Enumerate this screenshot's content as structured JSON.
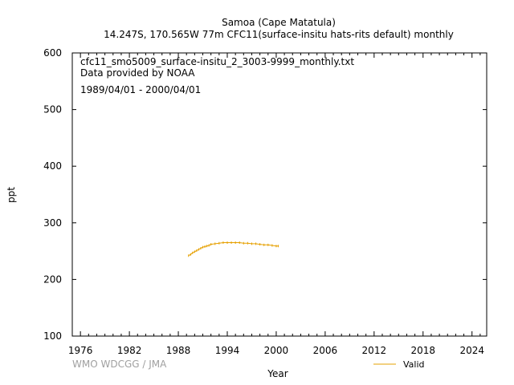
{
  "chart_data": {
    "type": "line",
    "title": "Samoa (Cape Matatula)",
    "subtitle": "14.247S, 170.565W 77m    CFC11(surface-insitu hats-rits default) monthly",
    "annotations": [
      "cfc11_smo5009_surface-insitu_2_3003-9999_monthly.txt",
      "Data provided by NOAA",
      "1989/04/01 - 2000/04/01"
    ],
    "xlabel": "Year",
    "ylabel": "ppt",
    "xlim": [
      1975,
      2025.8
    ],
    "ylim": [
      100,
      600
    ],
    "x_ticks": [
      1976,
      1982,
      1988,
      1994,
      2000,
      2006,
      2012,
      2018,
      2024
    ],
    "y_ticks": [
      100,
      200,
      300,
      400,
      500,
      600
    ],
    "legend": {
      "position": "bottom-right",
      "entries": [
        "Valid"
      ]
    },
    "credit": "WMO WDCGG / JMA",
    "colors": {
      "valid": "#e6a000",
      "credit": "#a0a0a0"
    },
    "series": [
      {
        "name": "Valid",
        "x": [
          1989.25,
          1989.5,
          1989.75,
          1990.0,
          1990.25,
          1990.5,
          1990.75,
          1991.0,
          1991.25,
          1991.5,
          1991.75,
          1992.0,
          1992.5,
          1993.0,
          1993.5,
          1994.0,
          1994.5,
          1995.0,
          1995.5,
          1996.0,
          1996.5,
          1997.0,
          1997.5,
          1998.0,
          1998.5,
          1999.0,
          1999.5,
          2000.0,
          2000.25
        ],
        "y": [
          242,
          244,
          247,
          249,
          251,
          253,
          255,
          257,
          258,
          259,
          260,
          262,
          263,
          264,
          265,
          265,
          265,
          265,
          265,
          264,
          264,
          263,
          263,
          262,
          261,
          261,
          260,
          259,
          259
        ]
      }
    ]
  }
}
